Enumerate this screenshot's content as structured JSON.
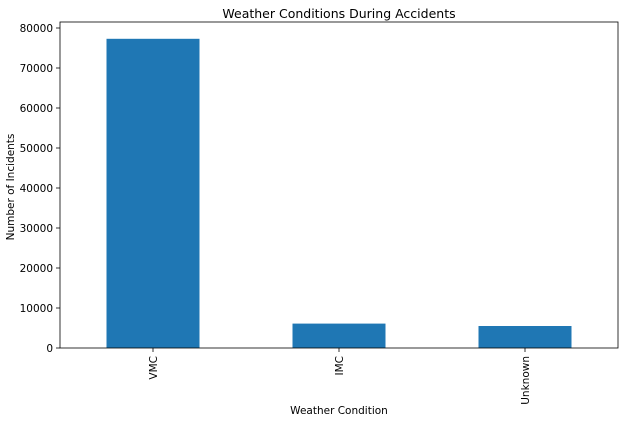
{
  "chart_data": {
    "type": "bar",
    "title": "Weather Conditions During Accidents",
    "xlabel": "Weather Condition",
    "ylabel": "Number of Incidents",
    "categories": [
      "VMC",
      "IMC",
      "Unknown"
    ],
    "values": [
      77300,
      6100,
      5500
    ],
    "ylim": [
      0,
      81500
    ],
    "yticks": [
      0,
      10000,
      20000,
      30000,
      40000,
      50000,
      60000,
      70000,
      80000
    ],
    "ytick_labels": [
      "0",
      "10000",
      "20000",
      "30000",
      "40000",
      "50000",
      "60000",
      "70000",
      "80000"
    ],
    "bar_color": "#1f77b4",
    "grid": false,
    "legend": "none"
  }
}
